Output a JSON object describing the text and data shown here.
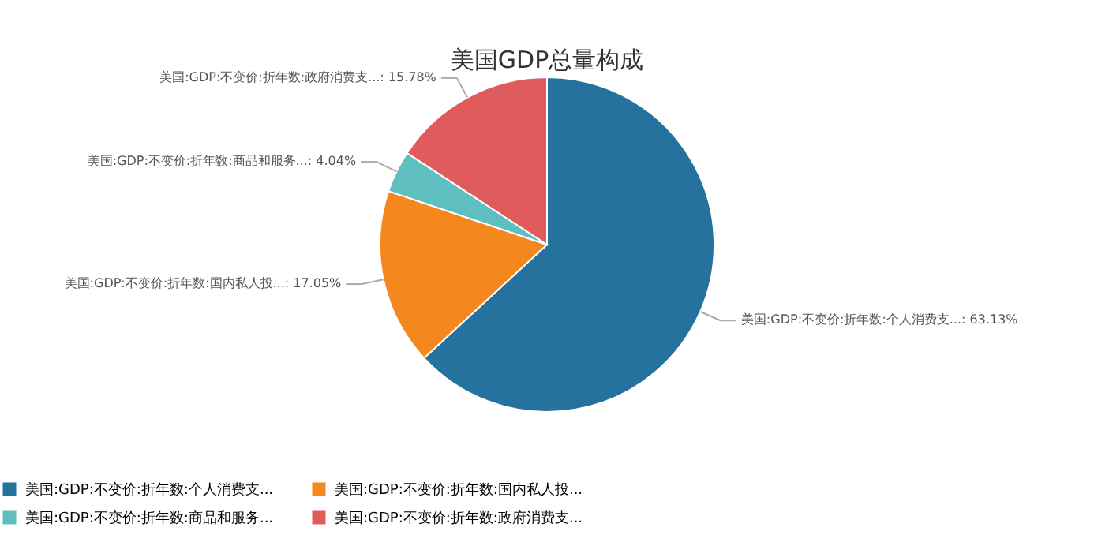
{
  "chart_data": {
    "type": "pie",
    "title": "美国GDP总量构成",
    "categories": [
      "美国:GDP:不变价:折年数:个人消费支...",
      "美国:GDP:不变价:折年数:国内私人投...",
      "美国:GDP:不变价:折年数:商品和服务...",
      "美国:GDP:不变价:折年数:政府消费支..."
    ],
    "values": [
      63.13,
      17.05,
      4.04,
      15.78
    ],
    "value_labels": [
      "美国:GDP:不变价:折年数:个人消费支...: 63.13%",
      "美国:GDP:不变价:折年数:国内私人投...: 17.05%",
      "美国:GDP:不变价:折年数:商品和服务...: 4.04%",
      "美国:GDP:不变价:折年数:政府消费支...: 15.78%"
    ],
    "colors": [
      "#25729f",
      "#f5871f",
      "#5fbfc0",
      "#e05c5c"
    ],
    "legend": "bottom"
  }
}
